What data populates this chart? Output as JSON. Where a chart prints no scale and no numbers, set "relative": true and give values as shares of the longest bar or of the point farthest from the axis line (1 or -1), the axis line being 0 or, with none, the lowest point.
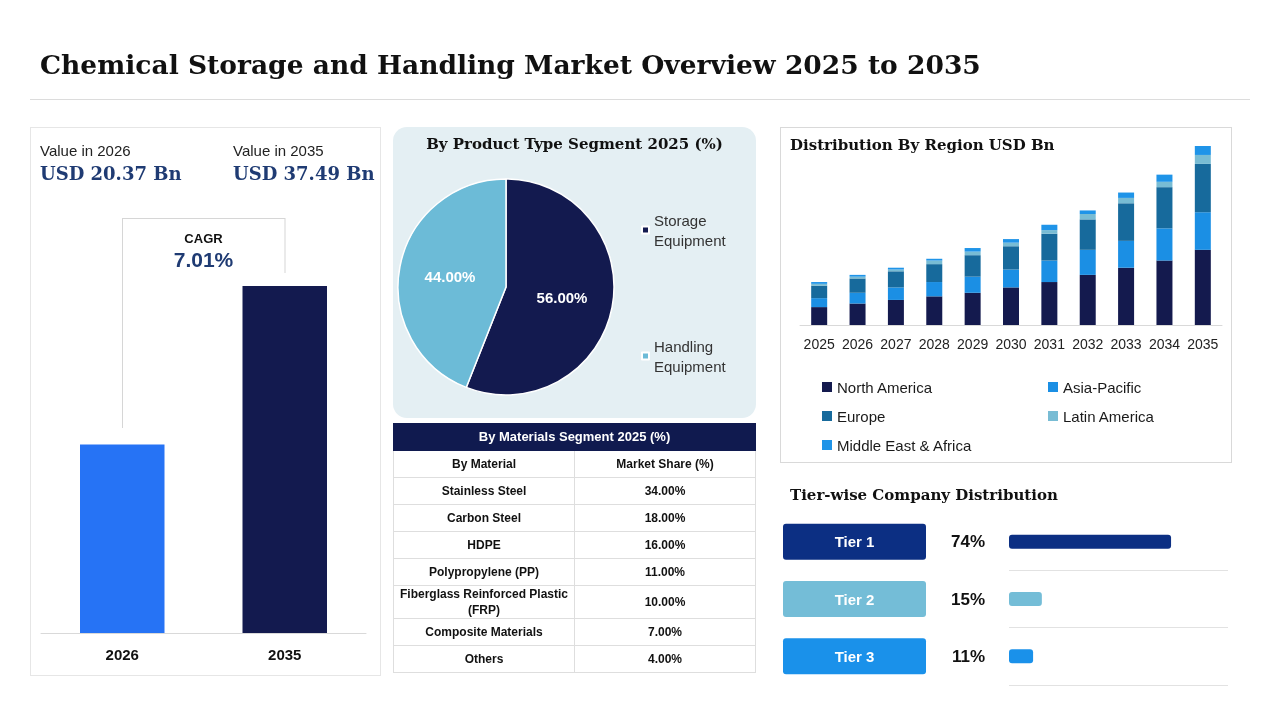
{
  "chart_data": [
    {
      "type": "other",
      "title": "Chemical Storage and Handling Market Overview 2025 to 2035"
    },
    {
      "type": "bar",
      "categories": [
        "2026",
        "2035"
      ],
      "values": [
        20.37,
        37.49
      ],
      "colors": [
        "#2673f5",
        "#131a4f"
      ],
      "value_labels": [
        "USD 20.37 Bn",
        "USD 37.49 Bn"
      ],
      "annotations": [
        "Value in 2026",
        "Value in 2035",
        "CAGR",
        "7.01%"
      ]
    },
    {
      "type": "pie",
      "title": "By Product Type Segment 2025 (%)",
      "categories": [
        "Storage Equipment",
        "Handling Equipment"
      ],
      "values": [
        56,
        44
      ],
      "colors": [
        "#131a4f",
        "#6cbbd7"
      ],
      "value_labels": [
        "56.00%",
        "44.00%"
      ],
      "legend": "right"
    },
    {
      "type": "other",
      "title": "By Materials Segment 2025 (%)",
      "xlabel": "By Material",
      "ylabel": "Market Share (%)",
      "categories": [
        "Stainless Steel",
        "Carbon Steel",
        "HDPE",
        "Polypropylene (PP)",
        "Fiberglass Reinforced Plastic (FRP)",
        "Composite Materials",
        "Others"
      ],
      "value_labels": [
        "34.00%",
        "18.00%",
        "16.00%",
        "11.00%",
        "10.00%",
        "7.00%",
        "4.00%"
      ]
    },
    {
      "type": "bar",
      "title": "Distribution By Region USD Bn",
      "stacked": true,
      "relative": true,
      "legend": "bottom",
      "categories": [
        "2025",
        "2026",
        "2027",
        "2028",
        "2029",
        "2030",
        "2031",
        "2032",
        "2033",
        "2034",
        "2035"
      ],
      "series": [
        {
          "name": "North America",
          "color": "#141a4e",
          "values": [
            0.1,
            0.12,
            0.14,
            0.16,
            0.18,
            0.21,
            0.24,
            0.28,
            0.32,
            0.36,
            0.42
          ]
        },
        {
          "name": "Asia-Pacific",
          "color": "#1b8fe4",
          "values": [
            0.05,
            0.06,
            0.07,
            0.08,
            0.09,
            0.1,
            0.12,
            0.14,
            0.15,
            0.18,
            0.21
          ]
        },
        {
          "name": "Europe",
          "color": "#176a9c",
          "values": [
            0.07,
            0.08,
            0.09,
            0.1,
            0.12,
            0.13,
            0.15,
            0.17,
            0.21,
            0.23,
            0.27
          ]
        },
        {
          "name": "Latin America",
          "color": "#78bcd4",
          "values": [
            0.01,
            0.01,
            0.01,
            0.02,
            0.02,
            0.02,
            0.02,
            0.03,
            0.03,
            0.03,
            0.05
          ]
        },
        {
          "name": "Middle East & Africa",
          "color": "#1f94e8",
          "values": [
            0.01,
            0.01,
            0.01,
            0.01,
            0.02,
            0.02,
            0.03,
            0.02,
            0.03,
            0.04,
            0.05
          ]
        }
      ]
    },
    {
      "type": "bar",
      "orientation": "horizontal",
      "title": "Tier-wise Company Distribution",
      "categories": [
        "Tier 1",
        "Tier 2",
        "Tier 3"
      ],
      "values": [
        74,
        15,
        11
      ],
      "colors": [
        "#0c2f83",
        "#74bdd7",
        "#1a91ea"
      ],
      "value_labels": [
        "74%",
        "15%",
        "11%"
      ],
      "grid": "y"
    }
  ]
}
